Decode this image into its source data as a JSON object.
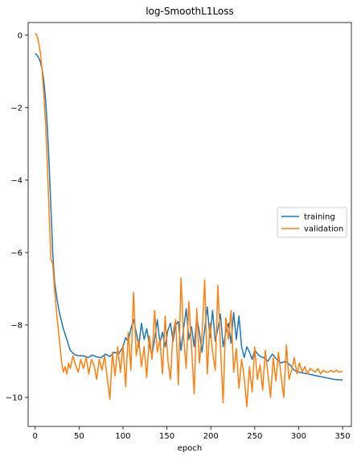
{
  "chart_data": {
    "type": "line",
    "title": "log-SmoothL1Loss",
    "xlabel": "epoch",
    "ylabel": "",
    "xlim": [
      -8,
      360
    ],
    "ylim": [
      -10.8,
      0.35
    ],
    "xticks": [
      0,
      50,
      100,
      150,
      200,
      250,
      300,
      350
    ],
    "xtick_labels": [
      "0",
      "50",
      "100",
      "150",
      "200",
      "250",
      "300",
      "350"
    ],
    "yticks": [
      0,
      -2,
      -4,
      -6,
      -8,
      -10
    ],
    "ytick_labels": [
      "0",
      "−2",
      "−4",
      "−6",
      "−8",
      "−10"
    ],
    "grid": false,
    "legend_position": "center-right",
    "series": [
      {
        "name": "training",
        "color": "#1f77b4",
        "x": [
          0,
          2,
          4,
          6,
          8,
          10,
          12,
          14,
          16,
          18,
          20,
          22,
          25,
          28,
          32,
          36,
          40,
          45,
          50,
          55,
          60,
          65,
          70,
          75,
          80,
          85,
          90,
          95,
          100,
          103,
          106,
          109,
          112,
          115,
          118,
          121,
          124,
          127,
          130,
          133,
          136,
          139,
          142,
          145,
          148,
          151,
          154,
          157,
          160,
          163,
          166,
          169,
          172,
          175,
          178,
          181,
          184,
          187,
          190,
          193,
          196,
          199,
          202,
          205,
          208,
          211,
          214,
          217,
          220,
          223,
          226,
          229,
          232,
          235,
          238,
          241,
          244,
          247,
          250,
          255,
          260,
          265,
          270,
          275,
          280,
          285,
          290,
          295,
          300,
          310,
          320,
          330,
          340,
          350
        ],
        "y": [
          -0.5,
          -0.55,
          -0.62,
          -0.75,
          -0.95,
          -1.3,
          -1.8,
          -2.6,
          -3.6,
          -4.8,
          -6.0,
          -6.8,
          -7.3,
          -7.7,
          -8.1,
          -8.4,
          -8.7,
          -8.82,
          -8.85,
          -8.85,
          -8.9,
          -8.83,
          -8.88,
          -8.9,
          -8.8,
          -8.87,
          -8.75,
          -8.8,
          -8.6,
          -8.35,
          -8.45,
          -8.1,
          -7.85,
          -8.2,
          -8.6,
          -7.95,
          -8.4,
          -8.1,
          -8.55,
          -8.85,
          -8.4,
          -7.85,
          -8.5,
          -8.2,
          -8.6,
          -8.15,
          -7.95,
          -8.45,
          -8.0,
          -7.9,
          -8.7,
          -8.1,
          -7.55,
          -8.4,
          -8.05,
          -8.6,
          -7.8,
          -8.2,
          -8.75,
          -8.1,
          -7.5,
          -8.35,
          -7.6,
          -8.45,
          -8.1,
          -7.7,
          -8.6,
          -8.2,
          -7.95,
          -8.5,
          -7.65,
          -8.4,
          -7.75,
          -8.6,
          -8.9,
          -8.6,
          -8.75,
          -8.95,
          -8.7,
          -8.85,
          -8.9,
          -9.0,
          -8.8,
          -8.95,
          -9.05,
          -9.0,
          -9.1,
          -9.25,
          -9.3,
          -9.35,
          -9.4,
          -9.45,
          -9.5,
          -9.52
        ]
      },
      {
        "name": "validation",
        "color": "#ff7f0e",
        "x": [
          0,
          2,
          4,
          6,
          8,
          10,
          12,
          14,
          16,
          18,
          20,
          22,
          25,
          28,
          30,
          32,
          34,
          36,
          38,
          40,
          43,
          46,
          49,
          52,
          55,
          58,
          61,
          64,
          67,
          70,
          73,
          76,
          79,
          82,
          85,
          88,
          91,
          94,
          97,
          100,
          103,
          106,
          109,
          112,
          115,
          118,
          121,
          124,
          127,
          130,
          133,
          136,
          139,
          142,
          145,
          148,
          151,
          154,
          157,
          160,
          163,
          166,
          169,
          172,
          175,
          178,
          181,
          184,
          187,
          190,
          193,
          196,
          199,
          202,
          205,
          208,
          211,
          214,
          217,
          220,
          223,
          226,
          229,
          232,
          235,
          238,
          241,
          244,
          247,
          250,
          253,
          256,
          259,
          262,
          265,
          268,
          271,
          274,
          277,
          280,
          283,
          286,
          289,
          292,
          295,
          298,
          301,
          304,
          307,
          310,
          313,
          316,
          319,
          322,
          325,
          328,
          331,
          334,
          337,
          340,
          343,
          346,
          350
        ],
        "y": [
          0.05,
          0.0,
          -0.2,
          -0.5,
          -1.0,
          -1.7,
          -2.5,
          -3.6,
          -5.0,
          -6.2,
          -6.3,
          -7.0,
          -7.8,
          -8.5,
          -9.0,
          -9.3,
          -9.15,
          -9.35,
          -9.05,
          -9.2,
          -8.85,
          -9.1,
          -9.3,
          -8.95,
          -9.2,
          -8.9,
          -9.35,
          -8.95,
          -9.1,
          -9.5,
          -8.95,
          -9.25,
          -8.85,
          -9.45,
          -10.05,
          -8.75,
          -9.4,
          -8.6,
          -9.3,
          -8.55,
          -9.7,
          -8.2,
          -9.25,
          -7.1,
          -8.85,
          -8.4,
          -9.15,
          -8.6,
          -9.45,
          -8.3,
          -8.95,
          -7.6,
          -8.75,
          -8.4,
          -9.35,
          -7.75,
          -8.95,
          -9.5,
          -8.2,
          -7.85,
          -9.65,
          -6.7,
          -8.35,
          -9.2,
          -7.35,
          -8.6,
          -9.9,
          -7.55,
          -9.05,
          -8.25,
          -6.75,
          -9.35,
          -7.95,
          -8.75,
          -9.25,
          -6.9,
          -8.6,
          -10.15,
          -7.8,
          -8.4,
          -7.6,
          -9.3,
          -8.65,
          -9.75,
          -8.95,
          -9.45,
          -10.25,
          -9.15,
          -9.85,
          -8.6,
          -9.5,
          -9.1,
          -9.8,
          -8.7,
          -9.35,
          -10.0,
          -8.9,
          -9.55,
          -8.75,
          -9.4,
          -10.0,
          -8.55,
          -9.5,
          -9.25,
          -8.9,
          -9.35,
          -9.05,
          -9.3,
          -9.15,
          -9.35,
          -9.2,
          -9.25,
          -9.3,
          -9.2,
          -9.35,
          -9.25,
          -9.3,
          -9.3,
          -9.25,
          -9.3,
          -9.25,
          -9.3,
          -9.28
        ]
      }
    ]
  }
}
